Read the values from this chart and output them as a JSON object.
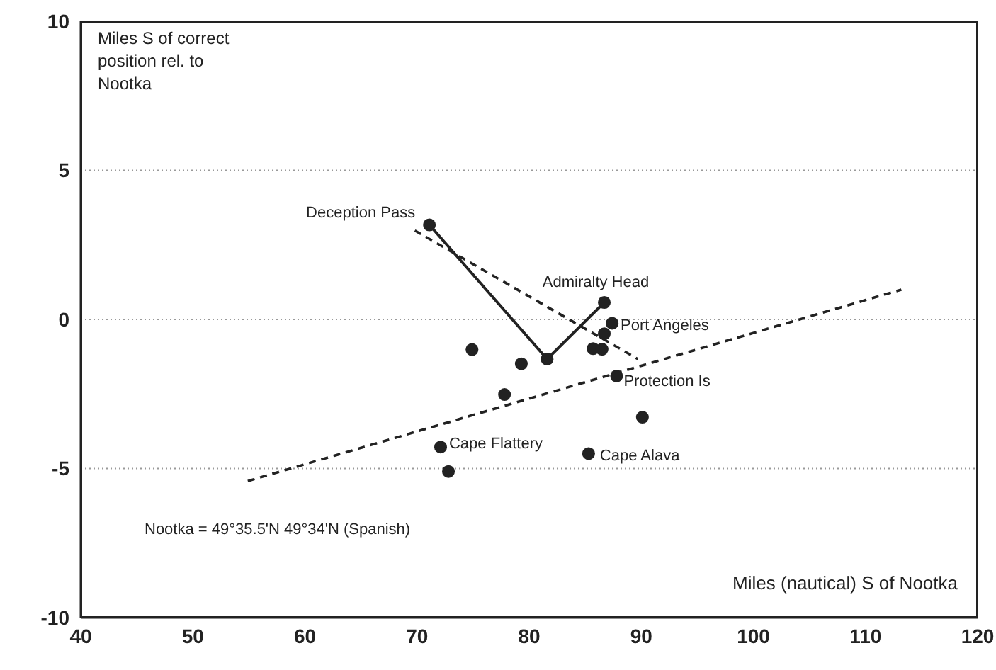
{
  "chart_data": {
    "type": "scatter",
    "xlabel": "Miles (nautical) S of Nootka",
    "ylabel": "Miles S of correct position rel. to Nootka",
    "xlim": [
      40,
      120
    ],
    "xticks": [
      40,
      50,
      60,
      70,
      80,
      90,
      100,
      110,
      120
    ],
    "ylim": [
      -10,
      10
    ],
    "yticks": [
      -10,
      -5,
      0,
      5,
      10
    ],
    "grid": "y",
    "series": [
      {
        "color": "#222222",
        "marker": "circle",
        "x": [
          71.1,
          86.7,
          87.4,
          86.7,
          85.7,
          86.5,
          81.6,
          79.3,
          74.9,
          87.8,
          77.8,
          90.1,
          72.1,
          85.3,
          72.8
        ],
        "values": [
          3.17,
          0.57,
          -0.13,
          -0.48,
          -0.98,
          -1.0,
          -1.33,
          -1.49,
          -1.01,
          -1.9,
          -2.52,
          -3.28,
          -4.28,
          -4.5,
          -5.1
        ]
      },
      {
        "type": "line",
        "color": "#222222",
        "line_style": "solid",
        "marker": "none",
        "x": [
          71.1,
          81.6,
          86.7
        ],
        "values": [
          3.17,
          -1.33,
          0.57
        ]
      },
      {
        "type": "line",
        "color": "#222222",
        "line_style": "dashed",
        "marker": "none",
        "x": [
          69.8,
          89.7
        ],
        "values": [
          2.98,
          -1.33
        ]
      },
      {
        "type": "line",
        "color": "#222222",
        "line_style": "dashed",
        "marker": "none",
        "x": [
          54.9,
          113.2
        ],
        "values": [
          -5.42,
          1.0
        ]
      }
    ],
    "annotations": [
      {
        "text": "Deception Pass",
        "x": 71.1,
        "y": 3.17
      },
      {
        "text": "Admiralty Head",
        "x": 86.7,
        "y": 0.57
      },
      {
        "text": "Port Angeles",
        "x": 87.4,
        "y": -0.13
      },
      {
        "text": "Protection Is",
        "x": 87.8,
        "y": -1.9
      },
      {
        "text": "Cape Flattery",
        "x": 72.1,
        "y": -4.28
      },
      {
        "text": "Cape Alava",
        "x": 85.3,
        "y": -4.5
      },
      "Nootka = 49°35.5'N  49°34'N (Spanish)"
    ]
  }
}
